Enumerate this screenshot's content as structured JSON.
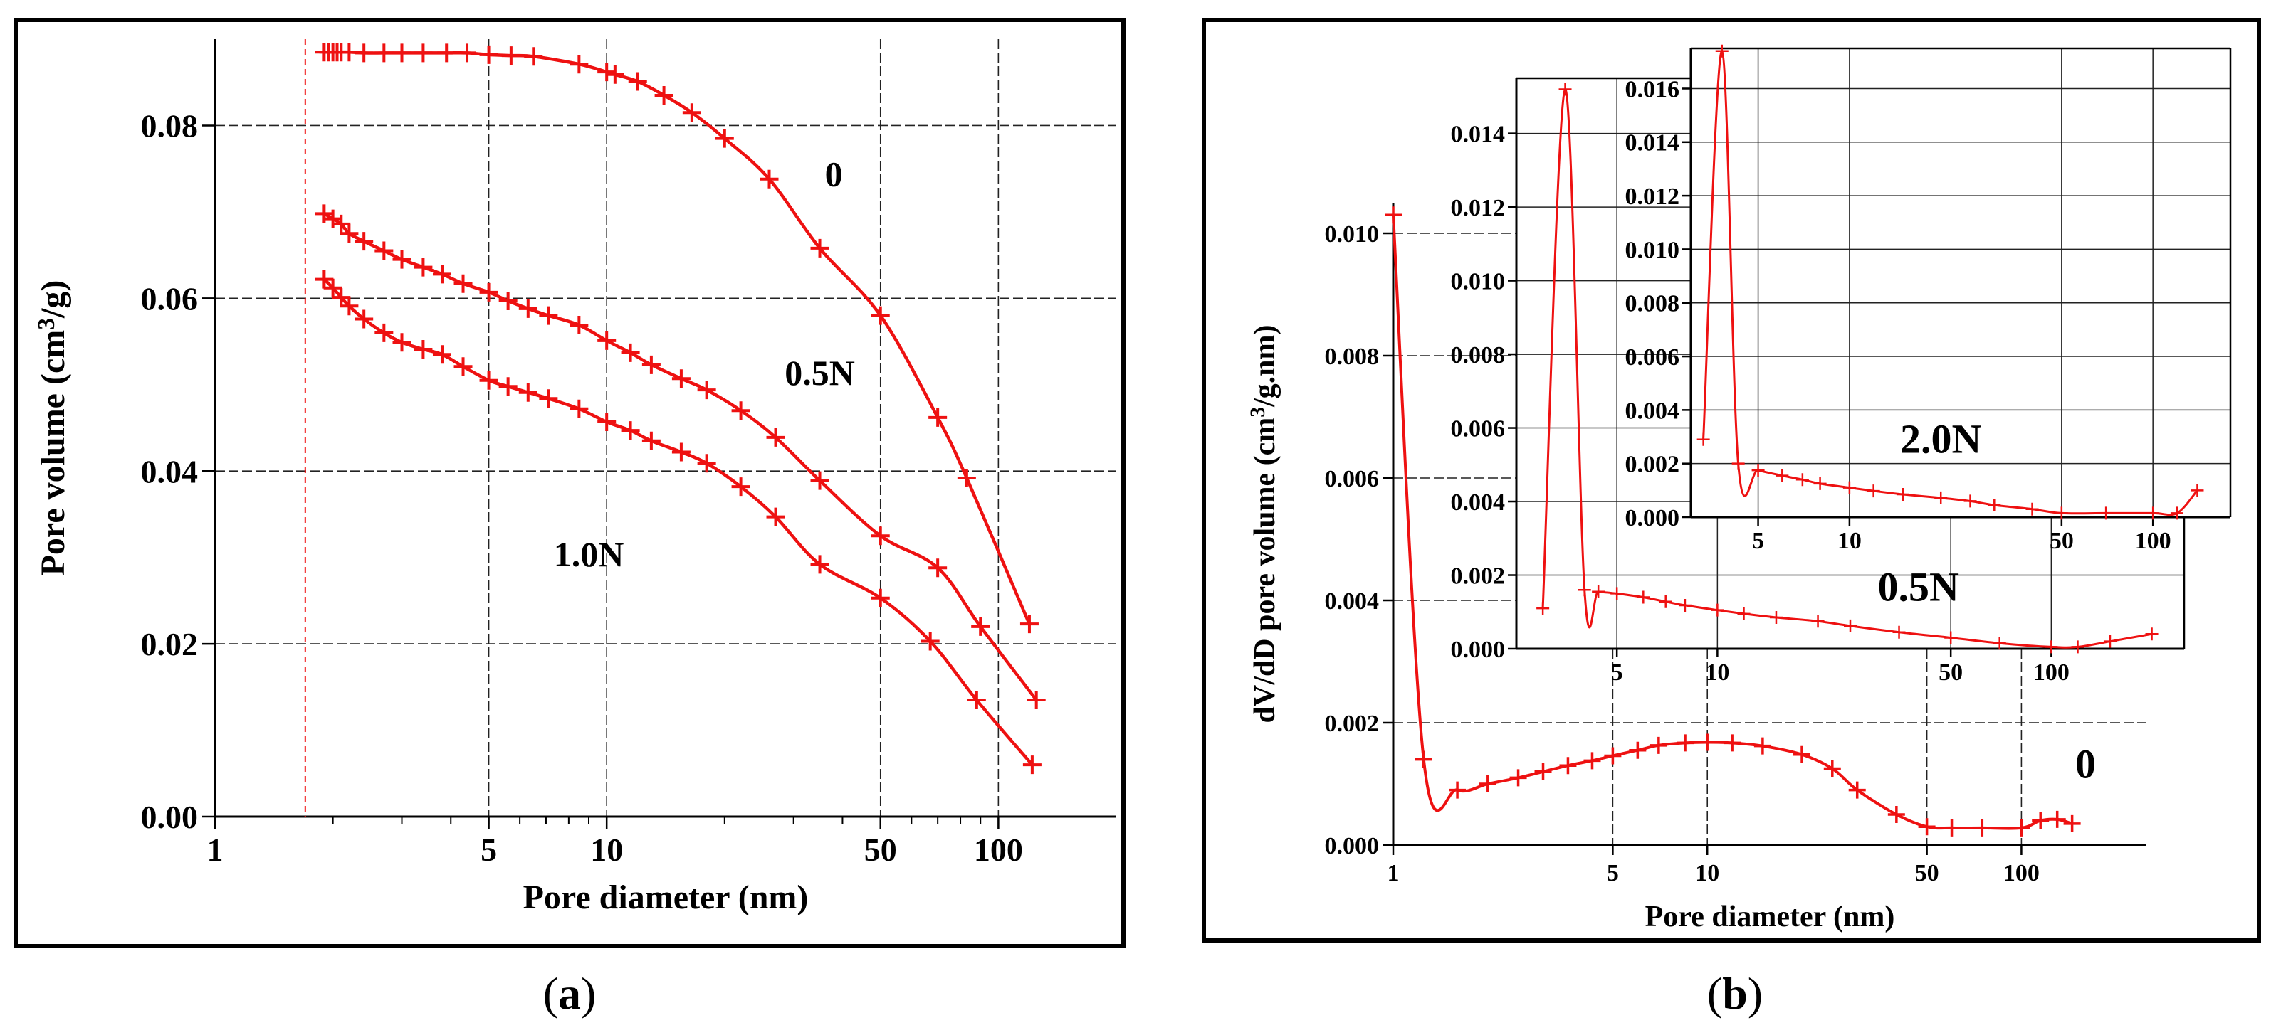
{
  "colors": {
    "series": "#ee1111",
    "frame": "#000000",
    "grid": "#222222",
    "background": "#ffffff"
  },
  "panels": {
    "a": {
      "caption_letter": "a",
      "caption": "(a)"
    },
    "b": {
      "caption_letter": "b",
      "caption": "(b)"
    }
  },
  "chart_data": [
    {
      "id": "a",
      "type": "line",
      "xscale": "log",
      "xlim": [
        1,
        200
      ],
      "ylim": [
        0,
        0.09
      ],
      "xticks": [
        1,
        5,
        10,
        50,
        100
      ],
      "xtick_labels": [
        "1",
        "5",
        "10",
        "50",
        "100"
      ],
      "yticks": [
        0,
        0.02,
        0.04,
        0.06,
        0.08
      ],
      "ytick_labels": [
        "0.00",
        "0.02",
        "0.04",
        "0.06",
        "0.08"
      ],
      "xlabel": "Pore diameter (nm)",
      "ylabel": "Pore volume (cm3/g)",
      "ylabel_parts": {
        "pre": "Pore volume (cm",
        "sup": "3",
        "post": "/g)"
      },
      "grid": true,
      "reference_line_x": 1.7,
      "series": [
        {
          "name": "0",
          "x": [
            1.9,
            1.95,
            2.0,
            2.05,
            2.1,
            2.2,
            2.4,
            2.7,
            3.0,
            3.4,
            3.9,
            4.4,
            5.0,
            5.7,
            6.5,
            8.5,
            10.0,
            10.5,
            12.0,
            14.0,
            16.5,
            20.0,
            26.0,
            35.0,
            50.0,
            70.0,
            83.0,
            120.0
          ],
          "y": [
            0.0885,
            0.0885,
            0.0885,
            0.0885,
            0.0885,
            0.0885,
            0.0884,
            0.0884,
            0.0884,
            0.0884,
            0.0884,
            0.0884,
            0.0882,
            0.0881,
            0.088,
            0.0871,
            0.0862,
            0.0859,
            0.0851,
            0.0835,
            0.0815,
            0.0785,
            0.0738,
            0.0658,
            0.058,
            0.0462,
            0.0392,
            0.0223
          ]
        },
        {
          "name": "0.5N",
          "x": [
            1.9,
            2.0,
            2.1,
            2.2,
            2.4,
            2.7,
            3.0,
            3.4,
            3.8,
            4.3,
            5.0,
            5.6,
            6.3,
            7.1,
            8.5,
            10.0,
            11.5,
            13.0,
            15.5,
            18.0,
            22.0,
            27.0,
            35.0,
            50.0,
            70.0,
            90.0,
            125.0
          ],
          "y": [
            0.0698,
            0.0692,
            0.0686,
            0.0675,
            0.0666,
            0.0655,
            0.0645,
            0.0636,
            0.0628,
            0.0617,
            0.0607,
            0.0597,
            0.0588,
            0.058,
            0.0569,
            0.0551,
            0.0537,
            0.0523,
            0.0507,
            0.0494,
            0.047,
            0.0439,
            0.0389,
            0.0325,
            0.0288,
            0.022,
            0.0135
          ]
        },
        {
          "name": "1.0N",
          "x": [
            1.9,
            2.0,
            2.1,
            2.2,
            2.4,
            2.7,
            3.0,
            3.4,
            3.8,
            4.3,
            5.0,
            5.6,
            6.3,
            7.1,
            8.5,
            10.0,
            11.5,
            13.0,
            15.5,
            18.0,
            22.0,
            27.0,
            35.0,
            50.0,
            67.0,
            88.0,
            122.0
          ],
          "y": [
            0.0622,
            0.0612,
            0.0601,
            0.0591,
            0.0576,
            0.056,
            0.0549,
            0.0541,
            0.0535,
            0.0521,
            0.0505,
            0.0498,
            0.0491,
            0.0484,
            0.0472,
            0.0457,
            0.0447,
            0.0435,
            0.0422,
            0.0409,
            0.0382,
            0.0347,
            0.0292,
            0.0253,
            0.0203,
            0.0135,
            0.006
          ]
        }
      ],
      "annotations": [
        {
          "text": "0",
          "x": 38,
          "y": 0.073
        },
        {
          "text": "0.5N",
          "x": 35,
          "y": 0.05
        },
        {
          "text": "1.0N",
          "x": 9,
          "y": 0.029
        }
      ]
    },
    {
      "id": "b-main",
      "type": "line",
      "xscale": "log",
      "xlim": [
        1,
        250
      ],
      "ylim": [
        0,
        0.0105
      ],
      "xticks": [
        1,
        5,
        10,
        50,
        100
      ],
      "xtick_labels": [
        "1",
        "5",
        "10",
        "50",
        "100"
      ],
      "yticks": [
        0,
        0.002,
        0.004,
        0.006,
        0.008,
        0.01
      ],
      "ytick_labels": [
        "0.000",
        "0.002",
        "0.004",
        "0.006",
        "0.008",
        "0.010"
      ],
      "xlabel": "Pore diameter (nm)",
      "ylabel": "dV/dD pore volume (cm3/g.nm)",
      "ylabel_parts": {
        "pre": "dV/dD pore volume (cm",
        "sup": "3",
        "post": "/g.nm)"
      },
      "grid": true,
      "series": [
        {
          "name": "0",
          "x": [
            1.0,
            1.25,
            1.6,
            2.0,
            2.5,
            3.0,
            3.6,
            4.3,
            5.0,
            6.0,
            7.0,
            8.5,
            10.0,
            12.0,
            15.0,
            20.0,
            25.0,
            30.0,
            40.0,
            50.0,
            60.0,
            75.0,
            100.0,
            115.0,
            130.0,
            145.0
          ],
          "y": [
            0.0103,
            0.0014,
            0.0009,
            0.001,
            0.0011,
            0.0012,
            0.0013,
            0.00138,
            0.00146,
            0.00155,
            0.00163,
            0.00167,
            0.00168,
            0.00167,
            0.00162,
            0.00148,
            0.00125,
            0.0009,
            0.0005,
            0.0003,
            0.00028,
            0.00028,
            0.00028,
            0.0004,
            0.00042,
            0.00035
          ]
        }
      ],
      "annotations": [
        {
          "text": "0",
          "x": 160,
          "y": 0.0011
        }
      ]
    },
    {
      "id": "b-inset-0.5N",
      "type": "line",
      "xscale": "log",
      "xlim": [
        2.5,
        250
      ],
      "ylim": [
        0,
        0.0155
      ],
      "xticks": [
        5,
        10,
        50,
        100
      ],
      "xtick_labels": [
        "5",
        "10",
        "50",
        "100"
      ],
      "yticks": [
        0,
        0.002,
        0.004,
        0.006,
        0.008,
        0.01,
        0.012,
        0.014
      ],
      "ytick_labels": [
        "0.000",
        "0.002",
        "0.004",
        "0.006",
        "0.008",
        "0.010",
        "0.012",
        "0.014"
      ],
      "grid": true,
      "series": [
        {
          "name": "0.5N",
          "x": [
            3.0,
            3.5,
            4.0,
            4.4,
            5.0,
            6.0,
            7.0,
            8.0,
            10.0,
            12.0,
            15.0,
            20.0,
            25.0,
            35.0,
            50.0,
            70.0,
            100.0,
            120.0,
            150.0,
            200.0
          ],
          "y": [
            0.0011,
            0.0152,
            0.0016,
            0.00155,
            0.0015,
            0.0014,
            0.00128,
            0.00118,
            0.00105,
            0.00095,
            0.00085,
            0.00075,
            0.00062,
            0.00045,
            0.0003,
            0.00015,
            5e-05,
            5e-05,
            0.0002,
            0.0004
          ]
        }
      ],
      "annotations": [
        {
          "text": "0.5N",
          "x": 40,
          "y": 0.0013
        }
      ]
    },
    {
      "id": "b-inset-2.0N",
      "type": "line",
      "xscale": "log",
      "xlim": [
        3,
        180
      ],
      "ylim": [
        0,
        0.0175
      ],
      "xticks": [
        5,
        10,
        50,
        100
      ],
      "xtick_labels": [
        "5",
        "10",
        "50",
        "100"
      ],
      "yticks": [
        0,
        0.002,
        0.004,
        0.006,
        0.008,
        0.01,
        0.012,
        0.014,
        0.016
      ],
      "ytick_labels": [
        "0.000",
        "0.002",
        "0.004",
        "0.006",
        "0.008",
        "0.010",
        "0.012",
        "0.014",
        "0.016"
      ],
      "grid": true,
      "series": [
        {
          "name": "2.0N",
          "x": [
            3.3,
            3.8,
            4.3,
            5.0,
            6.0,
            7.0,
            8.0,
            10.0,
            12.0,
            15.0,
            20.0,
            25.0,
            30.0,
            40.0,
            50.0,
            70.0,
            100.0,
            120.0,
            140.0
          ],
          "y": [
            0.0029,
            0.0174,
            0.002,
            0.00175,
            0.00155,
            0.0014,
            0.00125,
            0.0011,
            0.00098,
            0.00085,
            0.00072,
            0.0006,
            0.00045,
            0.0003,
            0.00015,
            0.00015,
            0.00015,
            0.00015,
            0.001
          ]
        }
      ],
      "annotations": [
        {
          "text": "2.0N",
          "x": 20,
          "y": 0.0024
        }
      ]
    }
  ]
}
